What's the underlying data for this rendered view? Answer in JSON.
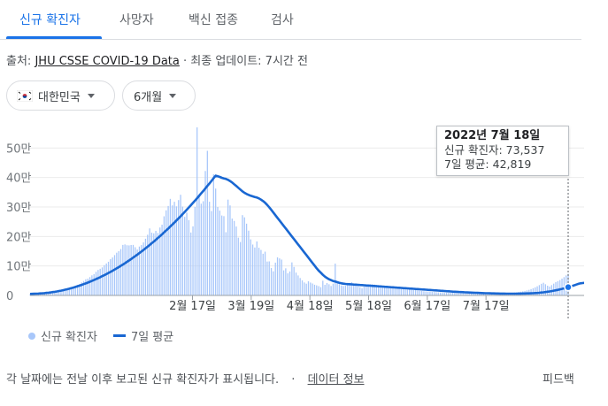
{
  "tabs": [
    {
      "label": "신규 확진자",
      "active": true
    },
    {
      "label": "사망자",
      "active": false
    },
    {
      "label": "백신 접종",
      "active": false
    },
    {
      "label": "검사",
      "active": false
    }
  ],
  "source": {
    "prefix": "출처:",
    "link": "JHU CSSE COVID-19 Data",
    "updated": "· 최종 업데이트: 7시간 전"
  },
  "filters": {
    "region": "대한민국",
    "region_icon": "korea-flag-icon",
    "period": "6개월"
  },
  "tooltip": {
    "date": "2022년 7월 18일",
    "cases_line": "신규 확진자: 73,537",
    "avg_line": "7일 평균: 42,819"
  },
  "legend": {
    "cases": "신규 확진자",
    "avg": "7일 평균"
  },
  "footer": {
    "note": "각 날짜에는 전날 이후 보고된 신규 확진자가 표시됩니다.",
    "separator": "·",
    "link": "데이터 정보",
    "feedback": "피드백"
  },
  "colors": {
    "accent": "#1a73e8",
    "bar": "#a8c7fa",
    "avg_line": "#1967d2"
  },
  "chart_data": {
    "type": "bar",
    "x_axis": "date",
    "x_ticks": [
      "2월 17일",
      "3월 19일",
      "4월 18일",
      "5월 18일",
      "6월 17일",
      "7월 17일"
    ],
    "y_ticks": [
      "0",
      "10만",
      "20만",
      "30만",
      "40만",
      "50만"
    ],
    "ylim": [
      0,
      600000
    ],
    "series": [
      {
        "name": "신규 확진자",
        "type": "bar",
        "values": [
          4200,
          5100,
          5800,
          6200,
          6800,
          7200,
          7900,
          8300,
          9100,
          9600,
          10300,
          11200,
          12400,
          13800,
          14800,
          16300,
          17100,
          18900,
          20300,
          22600,
          25100,
          28500,
          31300,
          35800,
          38700,
          44100,
          48900,
          54800,
          57000,
          62100,
          68200,
          72300,
          80100,
          86400,
          90400,
          95100,
          102700,
          108400,
          114200,
          123000,
          128800,
          136800,
          144900,
          150000,
          157300,
          171400,
          172900,
          170300,
          169700,
          171100,
          171400,
          163500,
          155800,
          165800,
          170800,
          179800,
          192300,
          205800,
          227300,
          212900,
          210700,
          219100,
          212000,
          230400,
          240000,
          268400,
          288600,
          303400,
          327500,
          305400,
          317600,
          302200,
          323400,
          341400,
          301400,
          266500,
          281000,
          255500,
          213400,
          234200,
          300100,
          570000,
          335400,
          311100,
          319500,
          422100,
          490400,
          317700,
          286200,
          410700,
          362400,
          299900,
          287600,
          271100,
          269000,
          214500,
          325000,
          305300,
          260600,
          252700,
          233700,
          196000,
          181100,
          272400,
          264900,
          243400,
          219700,
          190200,
          172600,
          162500,
          183200,
          161800,
          154300,
          141400,
          148400,
          115000,
          115500,
          93000,
          81700,
          111200,
          129200,
          125600,
          121600,
          85000,
          92000,
          74900,
          81400,
          112100,
          96800,
          77500,
          67800,
          59000,
          51200,
          44000,
          39900,
          48000,
          43700,
          40500,
          36300,
          34200,
          31700,
          28000,
          50000,
          36000,
          42000,
          38000,
          32000,
          40000,
          108000,
          44000,
          38000,
          34000,
          32000,
          33000,
          36000,
          39000,
          45000,
          40000,
          38000,
          32000,
          28000,
          24000,
          30000,
          35000,
          37000,
          38000,
          38000,
          37000,
          36000,
          35000,
          34000,
          33000,
          32000,
          30000,
          29000,
          27000,
          26000,
          25000,
          24000,
          23000,
          22000,
          21000,
          20500,
          20000,
          19500,
          19000,
          18500,
          18000,
          17000,
          16000,
          15000,
          14000,
          13500,
          13000,
          12500,
          12000,
          11500,
          11000,
          10500,
          10000,
          9800,
          9600,
          9400,
          9200,
          9000,
          8800,
          8500,
          8200,
          8000,
          7800,
          7500,
          7200,
          7000,
          6900,
          6800,
          6700,
          6600,
          6500,
          6400,
          6300,
          6200,
          6100,
          6000,
          6100,
          6200,
          6300,
          6400,
          6600,
          6800,
          7000,
          7300,
          7600,
          8000,
          8500,
          9100,
          9800,
          10600,
          11500,
          12600,
          13800,
          15300,
          17000,
          19000,
          21500,
          24500,
          27500,
          31000,
          35000,
          39500,
          43000,
          38000,
          33000,
          30000,
          35000,
          40000,
          45000,
          48000,
          52000,
          57000,
          62000,
          68000,
          73537
        ]
      },
      {
        "name": "7일 평균",
        "type": "line",
        "values": [
          5000,
          5300,
          5600,
          5900,
          6300,
          6800,
          7300,
          7900,
          8600,
          9400,
          10300,
          11300,
          12400,
          13600,
          14900,
          16300,
          17800,
          19400,
          21100,
          22900,
          24800,
          26800,
          28900,
          31100,
          33400,
          35800,
          38300,
          40900,
          43600,
          46400,
          49300,
          52300,
          55400,
          58600,
          61900,
          65300,
          68800,
          72400,
          76100,
          79900,
          83800,
          87800,
          91900,
          96100,
          100400,
          104800,
          109300,
          113900,
          118600,
          123400,
          128300,
          133300,
          138400,
          143600,
          148900,
          154300,
          159800,
          165400,
          171100,
          176900,
          182800,
          188800,
          194900,
          201100,
          207400,
          213800,
          220300,
          226900,
          233600,
          240400,
          247300,
          254300,
          261400,
          268600,
          275900,
          283300,
          290800,
          298400,
          306100,
          313900,
          321800,
          329800,
          337900,
          346100,
          354400,
          362800,
          371300,
          379900,
          388600,
          397400,
          406300,
          404000,
          402000,
          399000,
          397000,
          395000,
          392000,
          388000,
          383000,
          377000,
          371000,
          365000,
          359000,
          353000,
          348000,
          344000,
          341000,
          338000,
          336000,
          334000,
          332000,
          329000,
          325000,
          320000,
          314000,
          307000,
          299000,
          290000,
          281000,
          272000,
          263000,
          254000,
          245000,
          236000,
          227000,
          218000,
          209000,
          200000,
          191000,
          182000,
          173000,
          164000,
          155000,
          146000,
          137000,
          128000,
          119000,
          110000,
          101000,
          92000,
          84000,
          77000,
          70000,
          64000,
          59000,
          55000,
          52000,
          49000,
          47000,
          45000,
          43000,
          41000,
          40000,
          39000,
          38500,
          38000,
          37500,
          37000,
          36500,
          36000,
          35500,
          35000,
          34500,
          34000,
          33500,
          33000,
          32500,
          32000,
          31500,
          31000,
          30500,
          30000,
          29500,
          29000,
          28500,
          28000,
          27500,
          27000,
          26500,
          26000,
          25500,
          25000,
          24500,
          24000,
          23500,
          23000,
          22500,
          22000,
          21500,
          21000,
          20500,
          20000,
          19500,
          19000,
          18500,
          18000,
          17500,
          17000,
          16500,
          16000,
          15500,
          15000,
          14500,
          14000,
          13500,
          13000,
          12600,
          12200,
          11800,
          11400,
          11000,
          10600,
          10200,
          9800,
          9500,
          9200,
          8900,
          8600,
          8300,
          8000,
          7800,
          7600,
          7400,
          7200,
          7000,
          6800,
          6600,
          6500,
          6400,
          6300,
          6200,
          6100,
          6000,
          6000,
          6000,
          6050,
          6100,
          6200,
          6300,
          6450,
          6600,
          6800,
          7000,
          7300,
          7600,
          8000,
          8500,
          9100,
          9800,
          10600,
          11500,
          12500,
          13600,
          14800,
          16100,
          17500,
          19000,
          20600,
          22300,
          24100,
          26000,
          28000,
          30100,
          32300,
          34600,
          36900,
          39200,
          41000,
          42000,
          42819
        ]
      }
    ],
    "highlight": {
      "date": "2022년 7월 18일",
      "cases": 73537,
      "avg": 42819
    },
    "grid": true
  }
}
